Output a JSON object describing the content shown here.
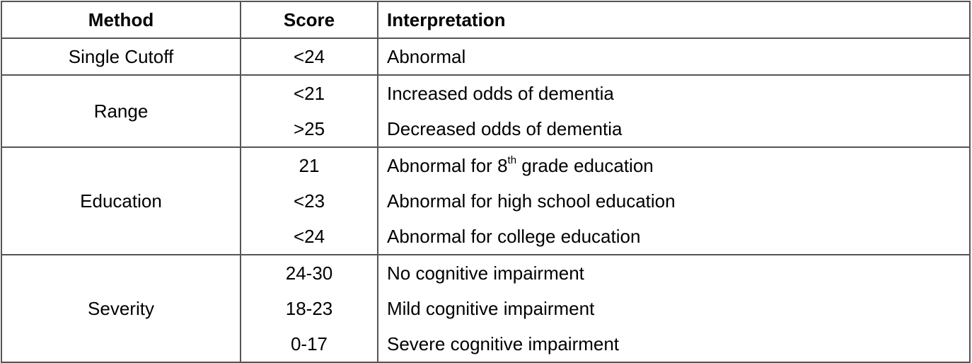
{
  "headers": {
    "method": "Method",
    "score": "Score",
    "interpretation": "Interpretation"
  },
  "groups": [
    {
      "method": "Single Cutoff",
      "rows": [
        {
          "score": "<24",
          "interpretation": "Abnormal"
        }
      ]
    },
    {
      "method": "Range",
      "rows": [
        {
          "score": "<21",
          "interpretation": "Increased odds of dementia"
        },
        {
          "score": ">25",
          "interpretation": "Decreased odds of dementia"
        }
      ]
    },
    {
      "method": "Education",
      "rows": [
        {
          "score": "21",
          "interpretation_pre": "Abnormal for 8",
          "interpretation_sup": "th",
          "interpretation_post": " grade education"
        },
        {
          "score": "<23",
          "interpretation": "Abnormal for high school education"
        },
        {
          "score": "<24",
          "interpretation": "Abnormal for college education"
        }
      ]
    },
    {
      "method": "Severity",
      "rows": [
        {
          "score": "24-30",
          "interpretation": "No cognitive impairment"
        },
        {
          "score": "18-23",
          "interpretation": "Mild cognitive impairment"
        },
        {
          "score": "0-17",
          "interpretation": "Severe cognitive impairment"
        }
      ]
    }
  ]
}
